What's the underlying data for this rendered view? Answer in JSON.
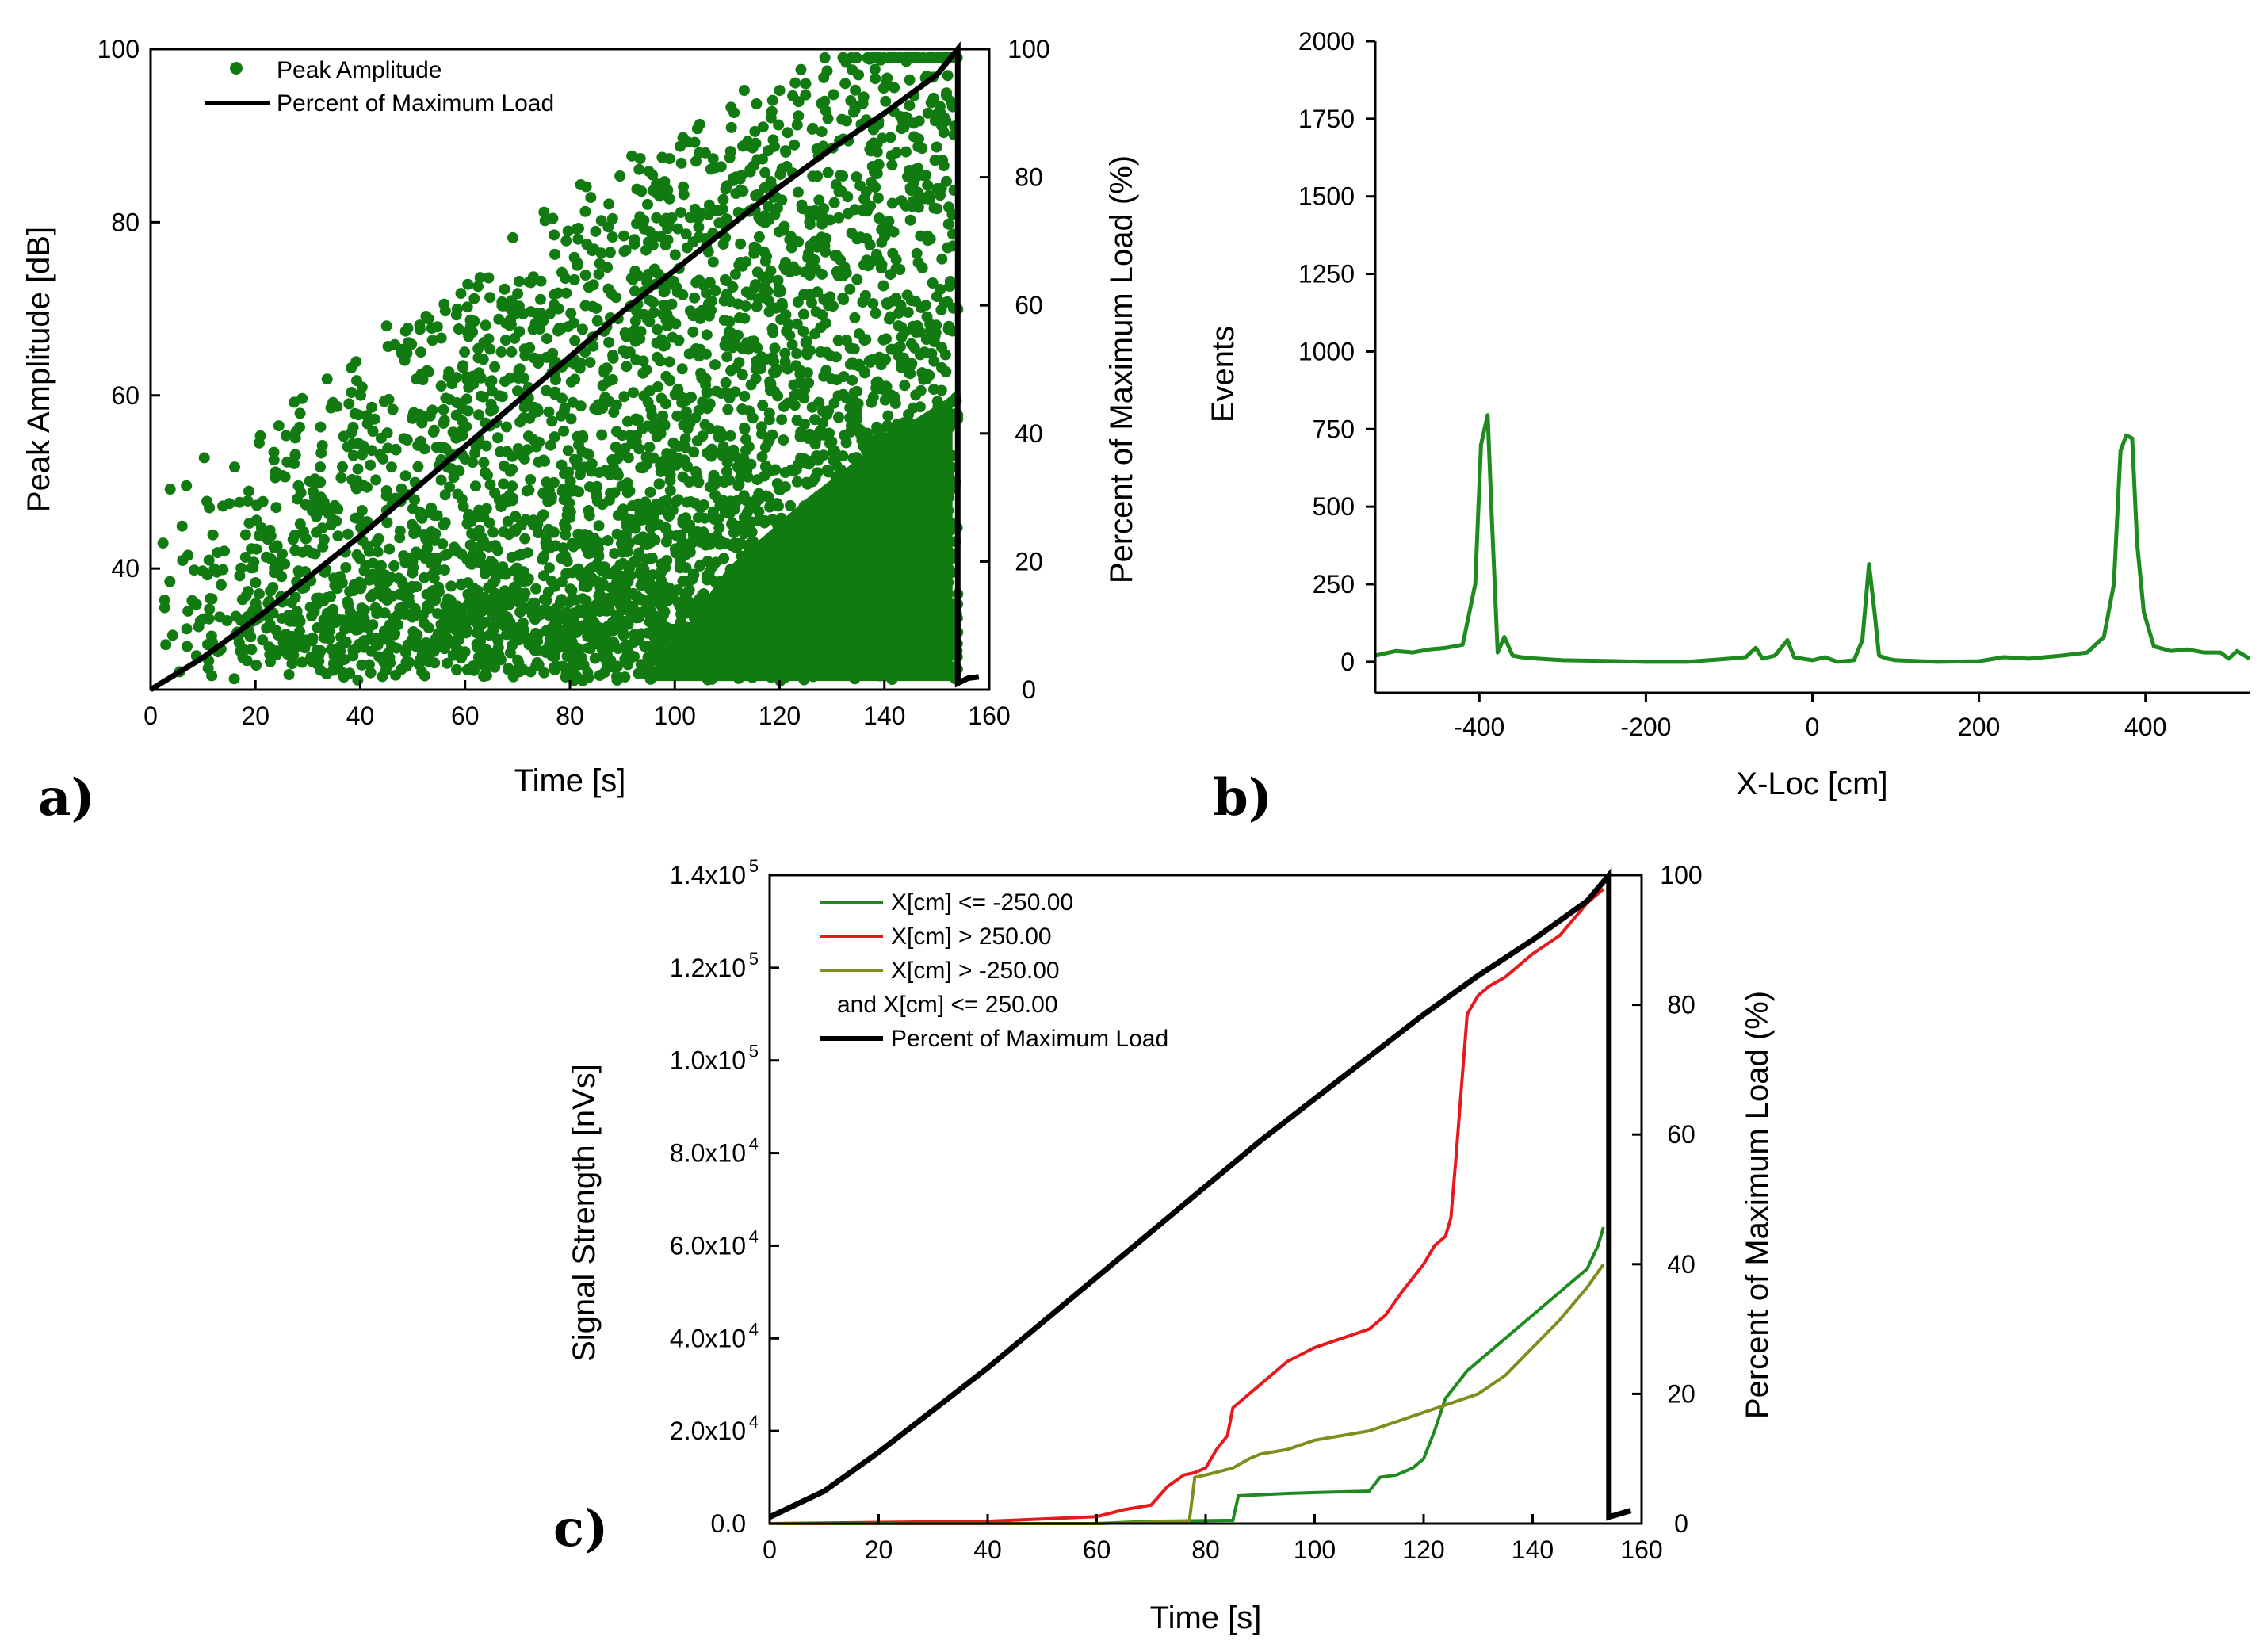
{
  "chart_data": [
    {
      "id": "a",
      "panel_label": "a)",
      "type": "scatter",
      "xlabel": "Time [s]",
      "ylabel": "Peak Amplitude [dB]",
      "y2label": "Percent of Maximum Load (%)",
      "xlim": [
        0,
        160
      ],
      "ylim": [
        26,
        100
      ],
      "y2lim": [
        0,
        100
      ],
      "xticks": [
        "0",
        "20",
        "40",
        "60",
        "80",
        "100",
        "120",
        "140",
        "160"
      ],
      "yticks": [
        "40",
        "60",
        "80",
        "100"
      ],
      "y2ticks": [
        "0",
        "20",
        "40",
        "60",
        "80",
        "100"
      ],
      "legend_position": "top-left",
      "colors": {
        "scatter": "#117a11",
        "load": "#000000"
      },
      "series": [
        {
          "name": "Peak Amplitude",
          "kind": "scatter",
          "note": "dense acoustic emission cloud, ~27-99 dB, density increasing with time"
        },
        {
          "name": "Percent of Maximum Load",
          "kind": "line",
          "axis": "y2",
          "x": [
            0,
            10,
            20,
            30,
            40,
            50,
            60,
            70,
            80,
            90,
            100,
            110,
            120,
            130,
            140,
            150,
            154,
            154,
            156,
            158
          ],
          "y": [
            0,
            5,
            11,
            17.5,
            24,
            31,
            38,
            45,
            52,
            59,
            65.5,
            72,
            78.5,
            84.5,
            90,
            96,
            100,
            1,
            1.8,
            2
          ]
        }
      ]
    },
    {
      "id": "b",
      "panel_label": "b)",
      "type": "line",
      "xlabel": "X-Loc [cm]",
      "ylabel": "Events",
      "xlim": [
        -525,
        525
      ],
      "ylim": [
        -100,
        2000
      ],
      "xticks": [
        "-400",
        "-200",
        "0",
        "200",
        "400"
      ],
      "yticks": [
        "0",
        "250",
        "500",
        "750",
        "1000",
        "1250",
        "1500",
        "1750",
        "2000"
      ],
      "colors": {
        "line": "#1f8a1f"
      },
      "series": [
        {
          "name": "Events",
          "x": [
            -525,
            -500,
            -480,
            -460,
            -440,
            -420,
            -405,
            -398,
            -390,
            -385,
            -378,
            -370,
            -360,
            -350,
            -330,
            -300,
            -250,
            -200,
            -150,
            -100,
            -80,
            -68,
            -60,
            -45,
            -30,
            -22,
            -12,
            0,
            15,
            30,
            50,
            60,
            68,
            75,
            80,
            90,
            100,
            150,
            200,
            230,
            260,
            300,
            330,
            350,
            362,
            370,
            377,
            384,
            390,
            398,
            410,
            430,
            450,
            470,
            490,
            500,
            510,
            525
          ],
          "y": [
            20,
            35,
            30,
            40,
            45,
            55,
            250,
            700,
            795,
            460,
            30,
            80,
            20,
            15,
            10,
            5,
            3,
            0,
            0,
            10,
            15,
            45,
            10,
            20,
            70,
            15,
            10,
            5,
            15,
            0,
            5,
            70,
            315,
            150,
            20,
            10,
            5,
            0,
            2,
            15,
            10,
            20,
            30,
            80,
            250,
            680,
            730,
            720,
            380,
            160,
            50,
            35,
            40,
            30,
            30,
            10,
            35,
            10
          ]
        }
      ]
    },
    {
      "id": "c",
      "panel_label": "c)",
      "type": "line",
      "xlabel": "Time [s]",
      "ylabel": "Signal Strength [nVs]",
      "y2label": "Percent of Maximum Load (%)",
      "xlim": [
        0,
        160
      ],
      "ylim": [
        0,
        140000
      ],
      "y2lim": [
        0,
        100
      ],
      "xticks": [
        "0",
        "20",
        "40",
        "60",
        "80",
        "100",
        "120",
        "140",
        "160"
      ],
      "ytick_mantissas": [
        "0.0",
        "2.0x10",
        "4.0x10",
        "6.0x10",
        "8.0x10",
        "1.0x10",
        "1.2x10",
        "1.4x10"
      ],
      "ytick_exponents": [
        "",
        "4",
        "4",
        "4",
        "4",
        "5",
        "5",
        "5"
      ],
      "y2ticks": [
        "0",
        "20",
        "40",
        "60",
        "80",
        "100"
      ],
      "legend": [
        "X[cm] <= -250.00",
        "X[cm] > 250.00",
        "X[cm] > -250.00",
        "and X[cm] <= 250.00",
        "Percent of Maximum Load"
      ],
      "colors": {
        "green": "#1f8a1f",
        "red": "#e8191c",
        "olive": "#808c1d",
        "load": "#000000"
      },
      "series": [
        {
          "name": "X[cm] <= -250.00",
          "color": "green",
          "x": [
            0,
            60,
            70,
            85,
            86,
            95,
            100,
            110,
            112,
            115,
            118,
            120,
            122,
            124,
            126,
            128,
            130,
            135,
            140,
            145,
            150,
            152,
            153
          ],
          "y": [
            0,
            0,
            500,
            700,
            6000,
            6500,
            6700,
            7000,
            10000,
            10500,
            12000,
            14000,
            20000,
            27000,
            30000,
            33000,
            35000,
            40000,
            45000,
            50000,
            55000,
            60000,
            64000
          ]
        },
        {
          "name": "X[cm] > 250.00",
          "color": "red",
          "x": [
            0,
            40,
            60,
            65,
            70,
            73,
            76,
            78,
            80,
            82,
            84,
            85,
            88,
            90,
            95,
            100,
            105,
            110,
            113,
            116,
            118,
            120,
            122,
            124,
            125,
            126,
            127,
            128,
            130,
            132,
            135,
            140,
            145,
            150,
            152,
            153
          ],
          "y": [
            0,
            500,
            1500,
            3000,
            4000,
            8000,
            10500,
            11000,
            12000,
            16000,
            19000,
            25000,
            28000,
            30000,
            35000,
            38000,
            40000,
            42000,
            45000,
            50000,
            53000,
            56000,
            60000,
            62000,
            66000,
            80000,
            95000,
            110000,
            114000,
            116000,
            118000,
            123000,
            127000,
            134000,
            136000,
            137000
          ]
        },
        {
          "name": "X[cm] > -250.00 and X[cm] <= 250.00",
          "color": "olive",
          "x": [
            0,
            60,
            77,
            78,
            80,
            85,
            88,
            90,
            95,
            100,
            105,
            110,
            115,
            120,
            125,
            130,
            135,
            140,
            145,
            150,
            153
          ],
          "y": [
            0,
            0,
            500,
            10000,
            10500,
            12000,
            14000,
            15000,
            16000,
            18000,
            19000,
            20000,
            22000,
            24000,
            26000,
            28000,
            32000,
            38000,
            44000,
            51000,
            56000
          ]
        },
        {
          "name": "Percent of Maximum Load",
          "color": "load",
          "axis": "y2",
          "x": [
            0,
            10,
            20,
            30,
            40,
            50,
            60,
            70,
            80,
            90,
            100,
            110,
            120,
            130,
            140,
            150,
            154,
            154,
            156,
            158
          ],
          "y": [
            1,
            5,
            11,
            17.5,
            24,
            31,
            38,
            45,
            52,
            59,
            65.5,
            72,
            78.5,
            84.5,
            90,
            96,
            100,
            1,
            1.5,
            2
          ]
        }
      ]
    }
  ]
}
